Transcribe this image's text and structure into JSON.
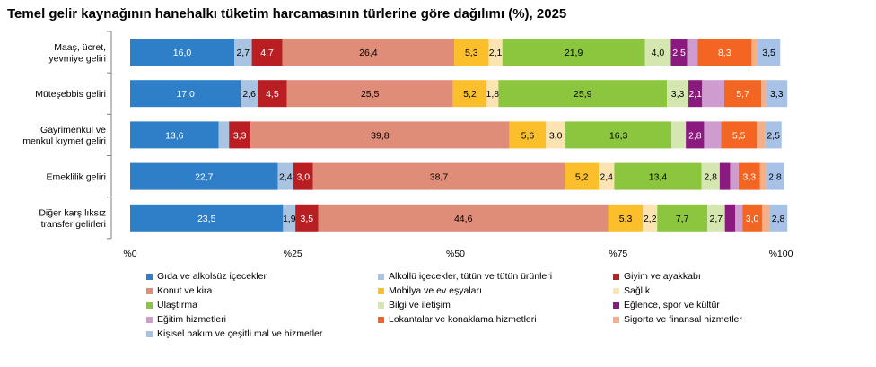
{
  "chart_data": {
    "type": "bar",
    "orientation": "horizontal",
    "stacked": true,
    "title": "Temel gelir kaynağının hanehalkı tüketim harcamasının türlerine göre dağılımı (%), 2025",
    "xlim": [
      0,
      100
    ],
    "x_ticks": [
      "%0",
      "%25",
      "%50",
      "%75",
      "%100"
    ],
    "legend_position": "bottom",
    "categories": [
      [
        "Maaş, ücret,",
        "yevmiye geliri"
      ],
      [
        "Müteşebbis geliri"
      ],
      [
        "Gayrimenkul ve",
        "menkul kıymet geliri"
      ],
      [
        "Emeklilik geliri"
      ],
      [
        "Diğer karşılıksız",
        "transfer gelirleri"
      ]
    ],
    "series": [
      {
        "name": "Gıda ve alkolsüz içecekler",
        "color": "#2e7fc7",
        "values": [
          16.0,
          17.0,
          13.6,
          22.7,
          23.5
        ],
        "labels": [
          "16,0",
          "17,0",
          "13,6",
          "22,7",
          "23,5"
        ]
      },
      {
        "name": "Alkollü içecekler, tütün ve tütün ürünleri",
        "color": "#a9c4e3",
        "values": [
          2.7,
          2.6,
          1.6,
          2.4,
          1.9
        ],
        "labels": [
          "2,7",
          "2,6",
          "",
          "2,4",
          "1,9"
        ]
      },
      {
        "name": "Giyim ve ayakkabı",
        "color": "#b81e22",
        "values": [
          4.7,
          4.5,
          3.3,
          3.0,
          3.5
        ],
        "labels": [
          "4,7",
          "4,5",
          "3,3",
          "3,0",
          "3,5"
        ]
      },
      {
        "name": "Konut ve kira",
        "color": "#df8c78",
        "values": [
          26.4,
          25.5,
          39.8,
          38.7,
          44.6
        ],
        "labels": [
          "26,4",
          "25,5",
          "39,8",
          "38,7",
          "44,6"
        ]
      },
      {
        "name": "Mobilya ve ev eşyaları",
        "color": "#fbbf2b",
        "values": [
          5.3,
          5.2,
          5.6,
          5.2,
          5.3
        ],
        "labels": [
          "5,3",
          "5,2",
          "5,6",
          "5,2",
          "5,3"
        ]
      },
      {
        "name": "Sağlık",
        "color": "#fbe3b2",
        "values": [
          2.1,
          1.8,
          3.0,
          2.4,
          2.2
        ],
        "labels": [
          "2,1",
          "1,8",
          "3,0",
          "2,4",
          "2,2"
        ]
      },
      {
        "name": "Ulaştırma",
        "color": "#8cc63f",
        "values": [
          21.9,
          25.9,
          16.3,
          13.4,
          7.7
        ],
        "labels": [
          "21,9",
          "25,9",
          "16,3",
          "13,4",
          "7,7"
        ]
      },
      {
        "name": "Bilgi ve iletişim",
        "color": "#d5e7b0",
        "values": [
          4.0,
          3.3,
          2.2,
          2.8,
          2.7
        ],
        "labels": [
          "4,0",
          "3,3",
          "",
          "2,8",
          "2,7"
        ]
      },
      {
        "name": "Eğlence, spor ve kültür",
        "color": "#8b1a7e",
        "values": [
          2.5,
          2.1,
          2.8,
          1.6,
          1.6
        ],
        "labels": [
          "2,5",
          "2,1",
          "2,8",
          "",
          ""
        ]
      },
      {
        "name": "Eğitim hizmetleri",
        "color": "#cf9ccf",
        "values": [
          1.6,
          3.4,
          2.6,
          1.3,
          1.1
        ],
        "labels": [
          "",
          "",
          "",
          "",
          ""
        ]
      },
      {
        "name": "Lokantalar ve konaklama hizmetleri",
        "color": "#f26522",
        "values": [
          8.3,
          5.7,
          5.5,
          3.3,
          3.0
        ],
        "labels": [
          "8,3",
          "5,7",
          "5,5",
          "3,3",
          "3,0"
        ]
      },
      {
        "name": "Sigorta ve finansal hizmetler",
        "color": "#f5ae86",
        "values": [
          0.9,
          0.7,
          1.3,
          0.9,
          1.1
        ],
        "labels": [
          "",
          "",
          "",
          "",
          ""
        ]
      },
      {
        "name": "Kişisel bakım ve çeşitli mal ve hizmetler",
        "color": "#a7c2e6",
        "values": [
          3.5,
          3.3,
          2.5,
          2.8,
          2.8
        ],
        "labels": [
          "3,5",
          "3,3",
          "2,5",
          "2,8",
          "2,8"
        ]
      }
    ]
  }
}
